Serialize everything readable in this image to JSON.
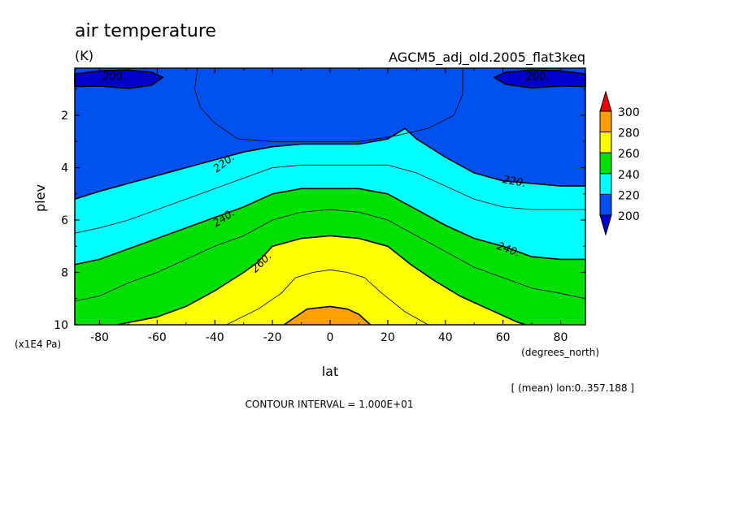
{
  "chart_data": {
    "type": "heatmap",
    "subtype": "filled-contour",
    "title": "air temperature",
    "units": "(K)",
    "dataset": "AGCM5_adj_old.2005_flat3keq",
    "xlabel": "lat",
    "x_units": "(degrees_north)",
    "ylabel": "plev",
    "y_units": "(x1E4 Pa)",
    "xlim": [
      -88.6,
      88.6
    ],
    "ylim": [
      0.2,
      10
    ],
    "y_inverted": true,
    "x_ticks": [
      "-80",
      "-60",
      "-40",
      "-20",
      "0",
      "20",
      "40",
      "60",
      "80"
    ],
    "x_tick_values": [
      -80,
      -60,
      -40,
      -20,
      0,
      20,
      40,
      60,
      80
    ],
    "y_ticks": [
      "2",
      "4",
      "6",
      "8",
      "10"
    ],
    "y_tick_values": [
      2,
      4,
      6,
      8,
      10
    ],
    "contour_interval_text": "CONTOUR INTERVAL = 1.000E+01",
    "mean_note": "[ (mean) lon:0..357.188 ]",
    "colorbar": {
      "levels": [
        200,
        220,
        240,
        260,
        280,
        300
      ],
      "labels": [
        "300",
        "280",
        "260",
        "240",
        "220",
        "200"
      ],
      "colors": [
        "#0050f0",
        "#00ffff",
        "#00e000",
        "#ffff00",
        "#ffa000",
        "#f00000"
      ],
      "below_color": "#0000c8"
    },
    "contour_labels": [
      "200.",
      "200.",
      "220.",
      "220.",
      "240.",
      "240.",
      "260."
    ],
    "contour_labels_pos": [
      {
        "lat": -75,
        "p": 0.5,
        "rot": 0
      },
      {
        "lat": 72,
        "p": 0.5,
        "rot": 0
      },
      {
        "lat": -37,
        "p": 3.8,
        "rot": -38
      },
      {
        "lat": 64,
        "p": 4.5,
        "rot": 10
      },
      {
        "lat": -37,
        "p": 5.9,
        "rot": -34
      },
      {
        "lat": 62,
        "p": 7.1,
        "rot": 20
      },
      {
        "lat": -24,
        "p": 7.6,
        "rot": -45
      }
    ],
    "contours": [
      {
        "level": 200,
        "closed": true,
        "points": [
          [
            -88.6,
            0.42
          ],
          [
            -80,
            0.3
          ],
          [
            -70,
            0.27
          ],
          [
            -62,
            0.35
          ],
          [
            -58,
            0.55
          ],
          [
            -62,
            0.85
          ],
          [
            -70,
            0.97
          ],
          [
            -80,
            0.88
          ],
          [
            -88.6,
            0.9
          ]
        ]
      },
      {
        "level": 200,
        "closed": true,
        "points": [
          [
            88.6,
            0.42
          ],
          [
            80,
            0.3
          ],
          [
            70,
            0.27
          ],
          [
            61,
            0.35
          ],
          [
            57,
            0.55
          ],
          [
            61,
            0.82
          ],
          [
            70,
            0.95
          ],
          [
            80,
            0.88
          ],
          [
            88.6,
            0.9
          ]
        ]
      },
      {
        "level": 210,
        "points": [
          [
            -46,
            0.2
          ],
          [
            -47,
            1.0
          ],
          [
            -45,
            1.7
          ],
          [
            -40,
            2.3
          ],
          [
            -32,
            2.9
          ],
          [
            -20,
            3.0
          ],
          [
            0,
            3.0
          ],
          [
            10,
            3.0
          ],
          [
            22,
            2.8
          ],
          [
            34,
            2.5
          ],
          [
            43,
            2.0
          ],
          [
            46,
            1.2
          ],
          [
            46,
            0.2
          ]
        ]
      },
      {
        "level": 220,
        "points": [
          [
            -88.6,
            5.2
          ],
          [
            -80,
            4.9
          ],
          [
            -70,
            4.6
          ],
          [
            -60,
            4.3
          ],
          [
            -50,
            4.0
          ],
          [
            -40,
            3.7
          ],
          [
            -30,
            3.4
          ],
          [
            -20,
            3.2
          ],
          [
            -10,
            3.1
          ],
          [
            0,
            3.1
          ],
          [
            10,
            3.1
          ],
          [
            20,
            2.9
          ],
          [
            26,
            2.5
          ],
          [
            30,
            2.9
          ],
          [
            40,
            3.6
          ],
          [
            50,
            4.2
          ],
          [
            60,
            4.5
          ],
          [
            70,
            4.6
          ],
          [
            80,
            4.7
          ],
          [
            88.6,
            4.7
          ]
        ]
      },
      {
        "level": 230,
        "points": [
          [
            -88.6,
            6.5
          ],
          [
            -80,
            6.3
          ],
          [
            -70,
            6.0
          ],
          [
            -60,
            5.6
          ],
          [
            -50,
            5.2
          ],
          [
            -40,
            4.8
          ],
          [
            -30,
            4.4
          ],
          [
            -20,
            4.0
          ],
          [
            -10,
            3.9
          ],
          [
            0,
            3.9
          ],
          [
            10,
            3.9
          ],
          [
            20,
            3.9
          ],
          [
            30,
            4.2
          ],
          [
            40,
            4.7
          ],
          [
            50,
            5.2
          ],
          [
            60,
            5.5
          ],
          [
            70,
            5.6
          ],
          [
            80,
            5.6
          ],
          [
            88.6,
            5.6
          ]
        ]
      },
      {
        "level": 240,
        "points": [
          [
            -88.6,
            7.7
          ],
          [
            -80,
            7.5
          ],
          [
            -70,
            7.1
          ],
          [
            -60,
            6.7
          ],
          [
            -50,
            6.3
          ],
          [
            -40,
            5.9
          ],
          [
            -30,
            5.5
          ],
          [
            -20,
            5.0
          ],
          [
            -10,
            4.8
          ],
          [
            0,
            4.8
          ],
          [
            10,
            4.8
          ],
          [
            20,
            5.0
          ],
          [
            30,
            5.6
          ],
          [
            40,
            6.2
          ],
          [
            50,
            6.7
          ],
          [
            60,
            7.0
          ],
          [
            70,
            7.4
          ],
          [
            80,
            7.5
          ],
          [
            88.6,
            7.5
          ]
        ]
      },
      {
        "level": 250,
        "points": [
          [
            -88.6,
            9.1
          ],
          [
            -80,
            8.9
          ],
          [
            -70,
            8.4
          ],
          [
            -60,
            8.0
          ],
          [
            -50,
            7.5
          ],
          [
            -40,
            7.0
          ],
          [
            -30,
            6.6
          ],
          [
            -20,
            6.0
          ],
          [
            -10,
            5.7
          ],
          [
            0,
            5.6
          ],
          [
            10,
            5.7
          ],
          [
            20,
            6.0
          ],
          [
            30,
            6.6
          ],
          [
            40,
            7.2
          ],
          [
            50,
            7.8
          ],
          [
            60,
            8.2
          ],
          [
            70,
            8.6
          ],
          [
            80,
            8.8
          ],
          [
            88.6,
            9.0
          ]
        ]
      },
      {
        "level": 260,
        "points": [
          [
            -74,
            10.0
          ],
          [
            -60,
            9.7
          ],
          [
            -50,
            9.3
          ],
          [
            -40,
            8.7
          ],
          [
            -30,
            8.0
          ],
          [
            -25,
            7.6
          ],
          [
            -20,
            7.0
          ],
          [
            -10,
            6.7
          ],
          [
            0,
            6.6
          ],
          [
            10,
            6.7
          ],
          [
            20,
            7.0
          ],
          [
            28,
            7.7
          ],
          [
            36,
            8.3
          ],
          [
            45,
            8.9
          ],
          [
            55,
            9.4
          ],
          [
            65,
            9.9
          ],
          [
            68,
            10.0
          ]
        ]
      },
      {
        "level": 270,
        "points": [
          [
            -36,
            10.0
          ],
          [
            -25,
            9.4
          ],
          [
            -17,
            8.8
          ],
          [
            -12,
            8.2
          ],
          [
            -6,
            8.0
          ],
          [
            0,
            7.9
          ],
          [
            6,
            8.0
          ],
          [
            12,
            8.2
          ],
          [
            18,
            8.8
          ],
          [
            26,
            9.5
          ],
          [
            34,
            10.0
          ]
        ]
      },
      {
        "level": 280,
        "points": [
          [
            -16,
            10.0
          ],
          [
            -12,
            9.7
          ],
          [
            -8,
            9.4
          ],
          [
            0,
            9.3
          ],
          [
            6,
            9.4
          ],
          [
            10,
            9.6
          ],
          [
            14,
            10.0
          ]
        ]
      }
    ]
  }
}
